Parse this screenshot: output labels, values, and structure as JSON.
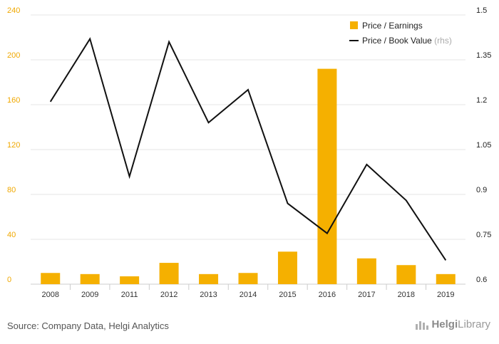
{
  "chart_data": {
    "type": "bar",
    "categories": [
      "2008",
      "2009",
      "2011",
      "2012",
      "2013",
      "2014",
      "2015",
      "2016",
      "2017",
      "2018",
      "2019"
    ],
    "series": [
      {
        "name": "Price / Earnings",
        "type": "bar",
        "axis": "left",
        "values": [
          10,
          9,
          7,
          19,
          9,
          10,
          29,
          192,
          23,
          17,
          9
        ]
      },
      {
        "name": "Price / Book Value",
        "type": "line",
        "axis": "right",
        "values": [
          1.21,
          1.42,
          0.96,
          1.41,
          1.14,
          1.25,
          0.87,
          0.77,
          1.0,
          0.88,
          0.68
        ]
      }
    ],
    "y_left": {
      "ticks": [
        "0",
        "40",
        "80",
        "120",
        "160",
        "200",
        "240"
      ],
      "lim": [
        0,
        240
      ]
    },
    "y_right": {
      "ticks": [
        "0.6",
        "0.75",
        "0.9",
        "1.05",
        "1.2",
        "1.35",
        "1.5"
      ],
      "lim": [
        0.6,
        1.5
      ]
    },
    "legend": {
      "position": "top-right",
      "rhs_note": "(rhs)"
    },
    "colors": {
      "bar": "#f5b000",
      "line": "#111111",
      "grid": "#e6e6e6"
    }
  },
  "footer": {
    "source": "Source: Company Data, Helgi Analytics"
  },
  "logo": {
    "prefix": "Helgi",
    "suffix": "Library"
  }
}
